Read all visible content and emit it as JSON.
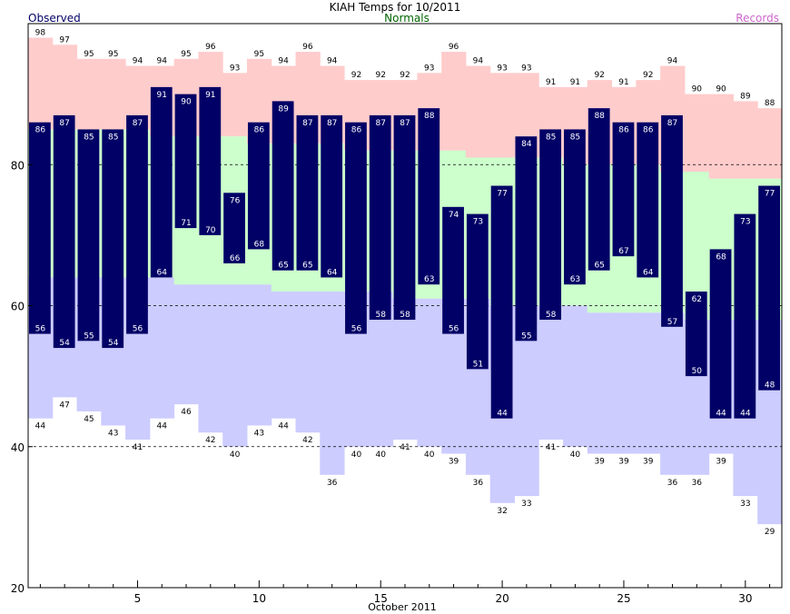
{
  "chart_data": {
    "type": "bar",
    "title": "KIAH Temps for 10/2011",
    "xlabel": "October 2011",
    "ylabel": "",
    "legend": {
      "observed": "Observed",
      "normals": "Normals",
      "records": "Records"
    },
    "colors": {
      "observed": "#000066",
      "normals_band": "#ccffcc",
      "record_high_band": "#ffcccc",
      "record_low_band": "#ccccff",
      "observed_legend": "#000066",
      "normals_legend": "#006600",
      "records_legend": "#cc66cc"
    },
    "xlim": [
      1,
      31
    ],
    "ylim": [
      20,
      100
    ],
    "y_ticks": [
      20,
      40,
      60,
      80
    ],
    "x_ticks": [
      5,
      10,
      15,
      20,
      25,
      30
    ],
    "grid_lines_dashed": [
      40,
      60,
      80
    ],
    "days": [
      1,
      2,
      3,
      4,
      5,
      6,
      7,
      8,
      9,
      10,
      11,
      12,
      13,
      14,
      15,
      16,
      17,
      18,
      19,
      20,
      21,
      22,
      23,
      24,
      25,
      26,
      27,
      28,
      29,
      30,
      31
    ],
    "observed_high": [
      86,
      87,
      85,
      85,
      87,
      91,
      90,
      91,
      76,
      86,
      89,
      87,
      87,
      86,
      87,
      87,
      88,
      74,
      73,
      77,
      84,
      85,
      85,
      88,
      86,
      86,
      87,
      62,
      68,
      73,
      77
    ],
    "observed_low": [
      56,
      54,
      55,
      54,
      56,
      64,
      71,
      70,
      66,
      68,
      65,
      65,
      64,
      56,
      58,
      58,
      63,
      56,
      51,
      44,
      55,
      58,
      63,
      65,
      67,
      64,
      57,
      50,
      44,
      44,
      48
    ],
    "record_high": [
      98,
      97,
      95,
      95,
      94,
      94,
      95,
      96,
      93,
      95,
      94,
      96,
      94,
      92,
      92,
      92,
      93,
      96,
      94,
      93,
      93,
      91,
      91,
      92,
      91,
      92,
      94,
      90,
      90,
      89,
      88
    ],
    "record_low": [
      44,
      47,
      45,
      43,
      41,
      44,
      46,
      42,
      40,
      43,
      44,
      42,
      36,
      40,
      40,
      41,
      40,
      39,
      36,
      32,
      33,
      41,
      40,
      39,
      39,
      39,
      36,
      36,
      39,
      33,
      29
    ],
    "normal_high": [
      85,
      85,
      85,
      85,
      85,
      84,
      84,
      84,
      84,
      83,
      83,
      83,
      83,
      82,
      82,
      82,
      82,
      82,
      81,
      81,
      81,
      81,
      80,
      80,
      80,
      80,
      79,
      79,
      78,
      78,
      78
    ],
    "normal_low": [
      64,
      64,
      64,
      64,
      64,
      64,
      63,
      63,
      63,
      63,
      62,
      62,
      62,
      62,
      62,
      61,
      61,
      61,
      61,
      60,
      60,
      60,
      60,
      59,
      59,
      59,
      59,
      58,
      58,
      58,
      58
    ]
  }
}
